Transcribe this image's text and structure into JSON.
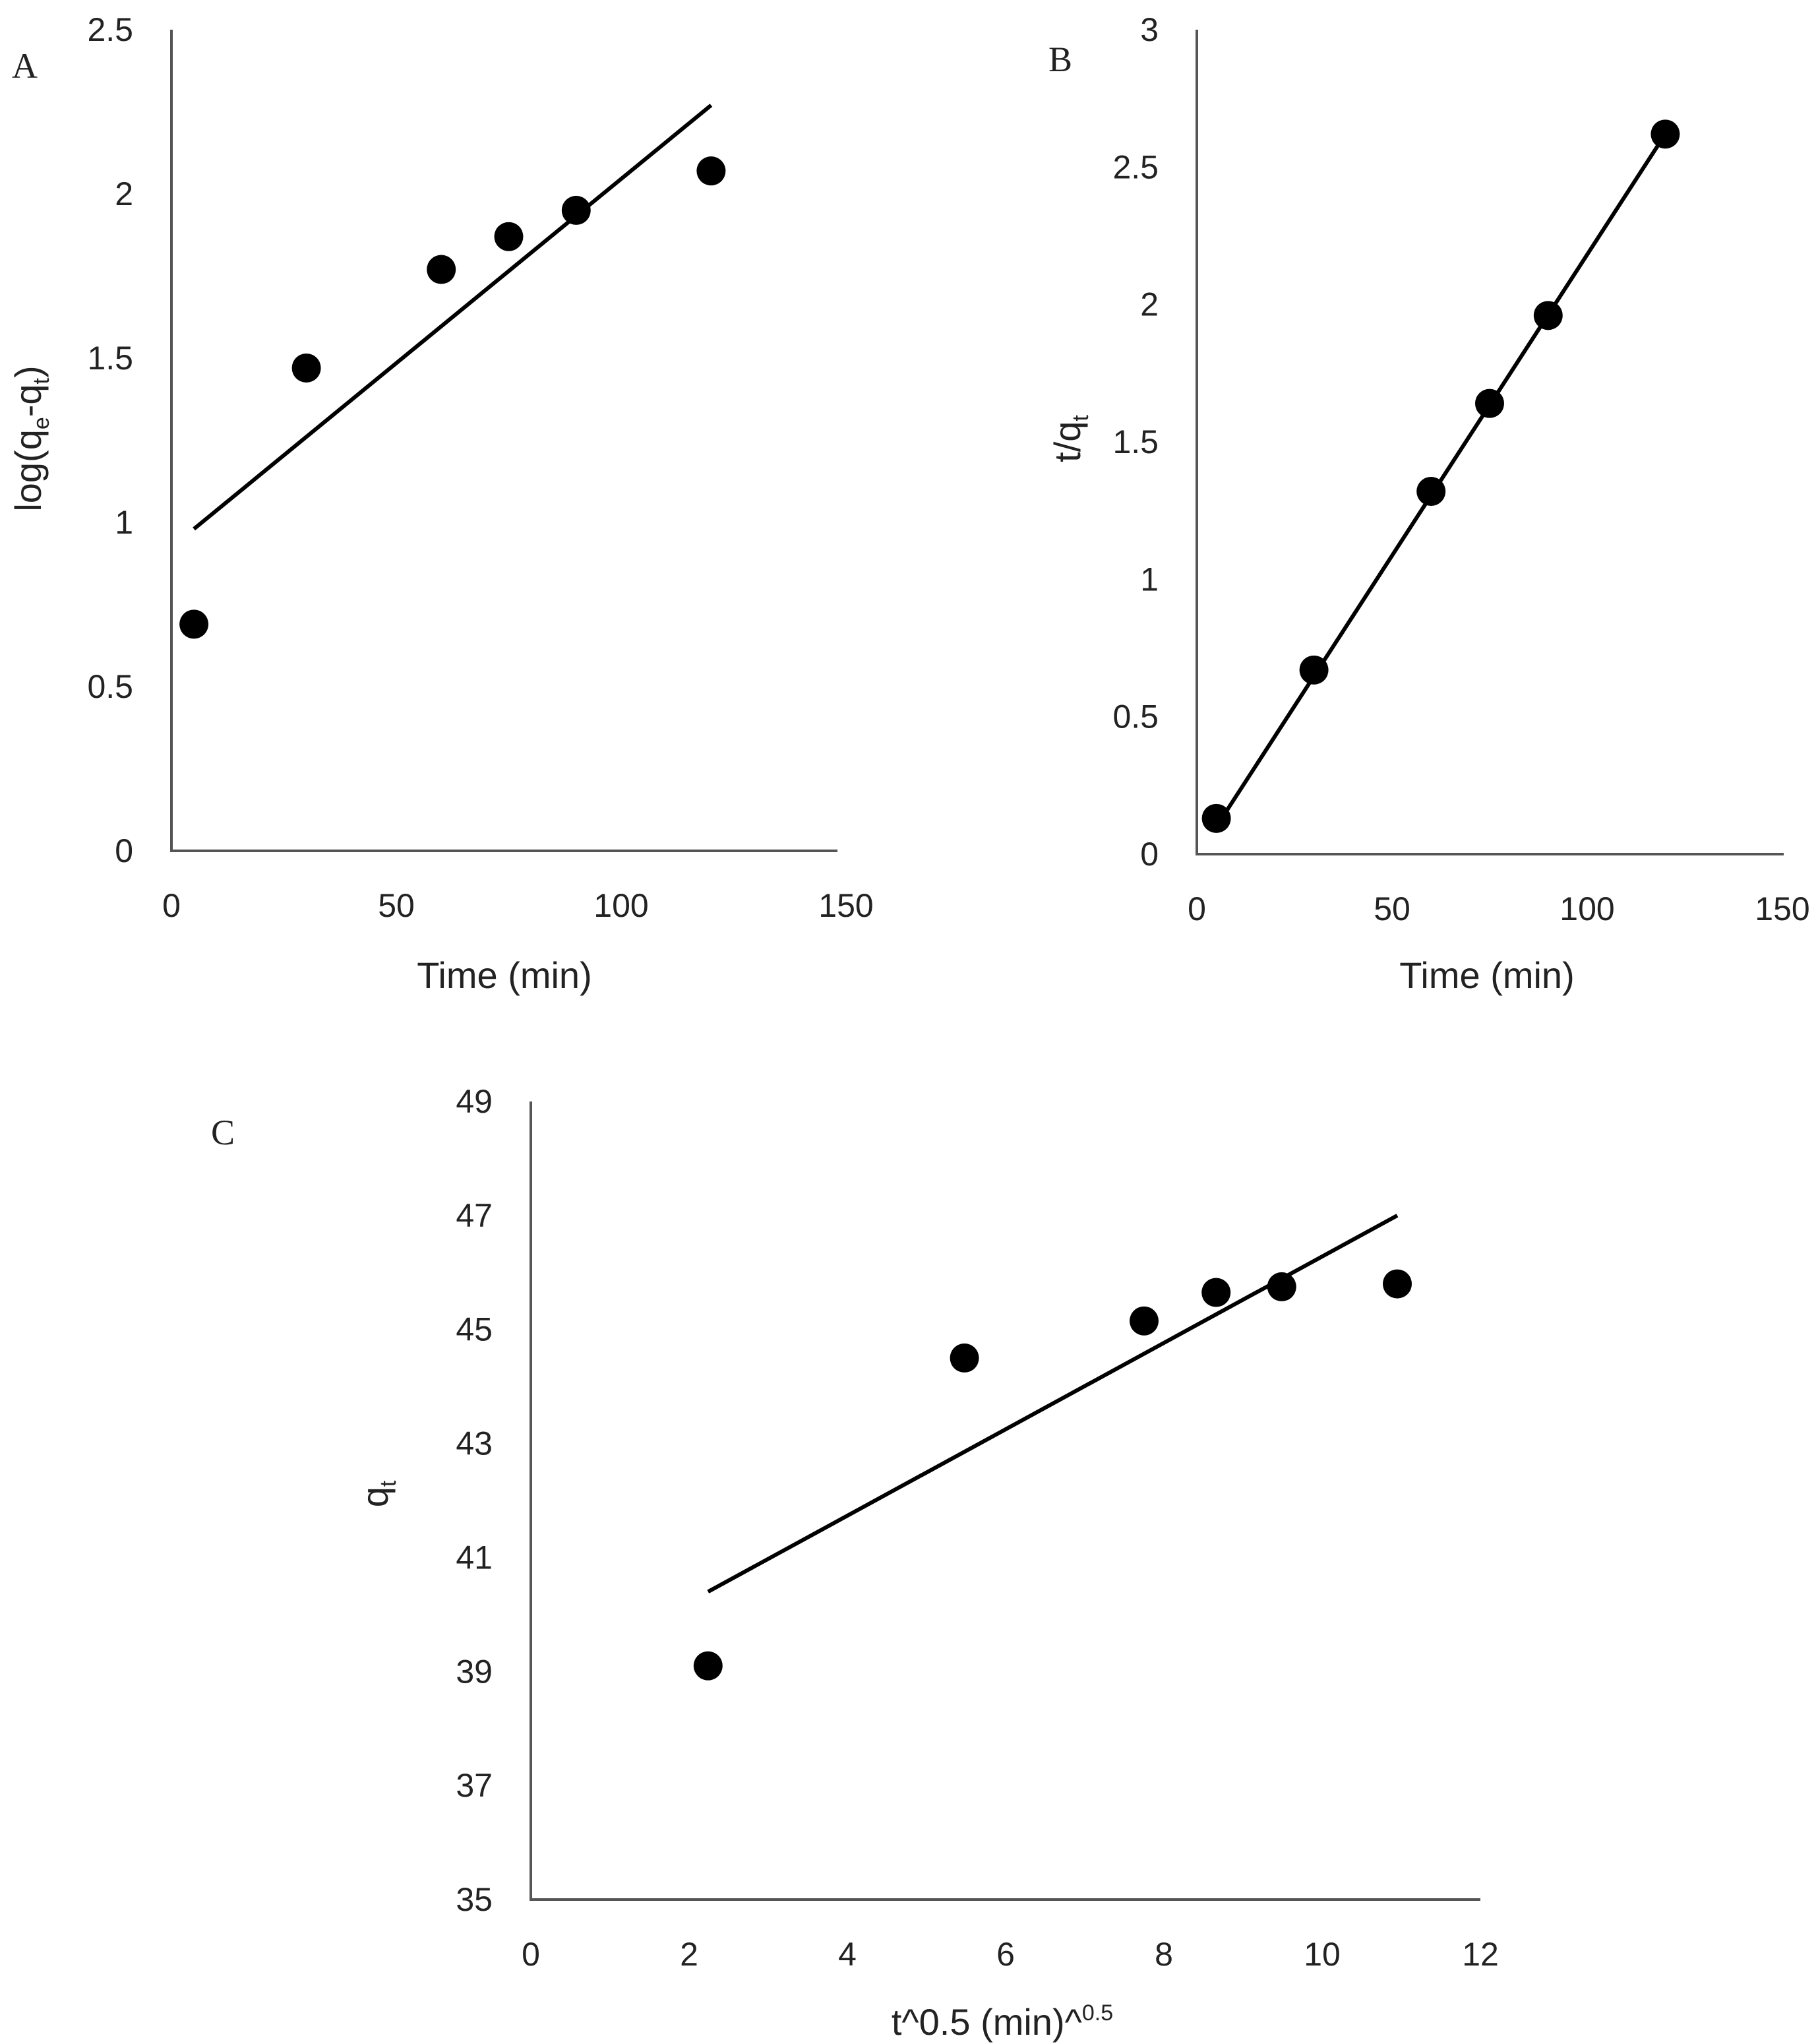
{
  "figure": {
    "panel_labels": [
      "A",
      "B",
      "C"
    ]
  },
  "chart_data": [
    {
      "type": "scatter",
      "panel": "A",
      "title": "",
      "xlabel": "Time (min)",
      "ylabel": {
        "prefix": "log(q",
        "sub1": "e",
        "mid": "-q",
        "sub2": "t",
        "suffix": ")"
      },
      "xlim": [
        0,
        150
      ],
      "ylim": [
        0,
        2.5
      ],
      "xticks": [
        0,
        50,
        100,
        150
      ],
      "xtick_labels": [
        "0",
        "50",
        "100",
        "150"
      ],
      "yticks": [
        0,
        0.5,
        1,
        1.5,
        2,
        2.5
      ],
      "ytick_labels": [
        "0",
        "0.5",
        "1",
        "1.5",
        "2",
        "2.5"
      ],
      "series": [
        {
          "name": "data",
          "x": [
            5,
            30,
            60,
            75,
            90,
            120
          ],
          "y": [
            0.69,
            1.47,
            1.77,
            1.87,
            1.95,
            2.07
          ]
        }
      ],
      "trendline": {
        "x": [
          5,
          120
        ],
        "y": [
          0.98,
          2.27
        ]
      }
    },
    {
      "type": "scatter",
      "panel": "B",
      "title": "",
      "xlabel": "Time (min)",
      "ylabel": {
        "prefix": "t/q",
        "sub1": "t",
        "mid": "",
        "sub2": "",
        "suffix": ""
      },
      "xlim": [
        0,
        150
      ],
      "ylim": [
        0,
        3
      ],
      "xticks": [
        0,
        50,
        100,
        150
      ],
      "xtick_labels": [
        "0",
        "50",
        "100",
        "150"
      ],
      "yticks": [
        0,
        0.5,
        1,
        1.5,
        2,
        2.5,
        3
      ],
      "ytick_labels": [
        "0",
        "0.5",
        "1",
        "1.5",
        "2",
        "2.5",
        "3"
      ],
      "series": [
        {
          "name": "data",
          "x": [
            5,
            30,
            60,
            75,
            90,
            120
          ],
          "y": [
            0.13,
            0.67,
            1.32,
            1.64,
            1.96,
            2.62
          ]
        }
      ],
      "trendline": {
        "x": [
          5,
          120
        ],
        "y": [
          0.1,
          2.62
        ]
      }
    },
    {
      "type": "scatter",
      "panel": "C",
      "title": "",
      "xlabel": {
        "text": "t^0.5 (min)^",
        "sup": "0.5"
      },
      "ylabel": {
        "prefix": "q",
        "sub1": "t",
        "mid": "",
        "sub2": "",
        "suffix": ""
      },
      "xlim": [
        0,
        12
      ],
      "ylim": [
        35,
        49
      ],
      "xticks": [
        0,
        2,
        4,
        6,
        8,
        10,
        12
      ],
      "xtick_labels": [
        "0",
        "2",
        "4",
        "6",
        "8",
        "10",
        "12"
      ],
      "yticks": [
        35,
        37,
        39,
        41,
        43,
        45,
        47,
        49
      ],
      "ytick_labels": [
        "35",
        "37",
        "39",
        "41",
        "43",
        "45",
        "47",
        "49"
      ],
      "series": [
        {
          "name": "data",
          "x": [
            2.24,
            5.48,
            7.75,
            8.66,
            9.49,
            10.95
          ],
          "y": [
            39.1,
            44.5,
            45.15,
            45.65,
            45.75,
            45.8
          ]
        }
      ],
      "trendline": {
        "x": [
          2.24,
          10.95
        ],
        "y": [
          40.4,
          47.0
        ]
      }
    }
  ]
}
